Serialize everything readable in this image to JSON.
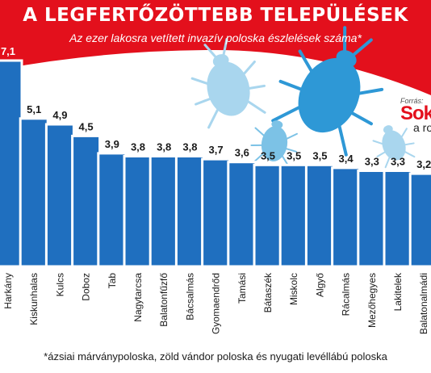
{
  "header": {
    "title": "A LEGFERTŐZÖTTEBB TELEPÜLÉSEK",
    "subtitle": "Az ezer lakosra vetített invazív poloska észlelések száma*"
  },
  "footnote": "*ázsiai márványpoloska, zöld vándor poloska és nyugati levéllábú poloska",
  "source": {
    "label": "Forrás:",
    "name": "Sok",
    "sub": "a ro"
  },
  "colors": {
    "banner": "#e3101c",
    "bar": "#1f6fbf",
    "bug_light": "#a9d6ee",
    "bug_mid": "#7cc2e6",
    "bug_dark": "#2e98d6"
  },
  "icons": [
    "stink-bug-icon",
    "stink-bug-icon",
    "stink-bug-icon",
    "stink-bug-icon"
  ],
  "chart_data": {
    "type": "bar",
    "categories": [
      "Harkány",
      "Kiskunhalas",
      "Kulcs",
      "Doboz",
      "Tab",
      "Nagytarcsa",
      "Balatonfűzfő",
      "Bácsalmás",
      "Gyomaendrőd",
      "Tamási",
      "Bátaszék",
      "Miskolc",
      "Algyő",
      "Rácalmás",
      "Mezőhegyes",
      "Lakitelek",
      "Balatonalmádi"
    ],
    "values": [
      7.1,
      5.1,
      4.9,
      4.5,
      3.9,
      3.8,
      3.8,
      3.8,
      3.7,
      3.6,
      3.5,
      3.5,
      3.5,
      3.4,
      3.3,
      3.3,
      3.2
    ],
    "value_labels": [
      "7,1",
      "5,1",
      "4,9",
      "4,5",
      "3,9",
      "3,8",
      "3,8",
      "3,8",
      "3,7",
      "3,6",
      "3,5",
      "3,5",
      "3,5",
      "3,4",
      "3,3",
      "3,3",
      "3,2"
    ],
    "ylim": [
      0,
      7.1
    ],
    "grid": false
  }
}
